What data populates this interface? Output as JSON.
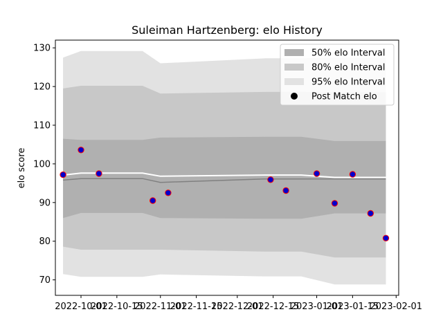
{
  "chart_data": {
    "type": "line",
    "title": "Suleiman  Hartzenberg: elo History",
    "xlabel": "",
    "ylabel": "elo score",
    "ylim": [
      66,
      132
    ],
    "xlim": [
      "2022-09-21",
      "2023-02-02"
    ],
    "x_ticks": [
      "2022-10-01",
      "2022-10-15",
      "2022-11-01",
      "2022-11-15",
      "2022-12-01",
      "2022-12-15",
      "2023-01-01",
      "2023-01-15",
      "2023-02-01"
    ],
    "y_ticks": [
      70,
      80,
      90,
      100,
      110,
      120,
      130
    ],
    "dates": [
      "2022-09-24",
      "2022-10-01",
      "2022-10-08",
      "2022-10-25",
      "2022-11-01",
      "2022-12-12",
      "2022-12-18",
      "2022-12-26",
      "2023-01-08",
      "2023-01-15",
      "2023-01-22",
      "2023-01-28"
    ],
    "mean_line": [
      97.1,
      97.6,
      97.6,
      97.6,
      96.8,
      97.1,
      97.1,
      97.1,
      96.5,
      96.5,
      96.5,
      96.5
    ],
    "median_line": [
      95.8,
      96.2,
      96.2,
      96.2,
      95.2,
      96.1,
      96.1,
      96.1,
      96.1,
      96.1,
      96.1,
      96.1
    ],
    "intervals": [
      {
        "name": "50% elo Interval",
        "color": "#b0b0b0",
        "lower": [
          86,
          87.3,
          87.3,
          87.3,
          86,
          85.8,
          85.8,
          85.8,
          87.2,
          87.2,
          87.2,
          87.2
        ],
        "upper": [
          106.5,
          106.2,
          106.2,
          106.2,
          106.8,
          107,
          107,
          107,
          105.9,
          105.9,
          105.9,
          105.9
        ]
      },
      {
        "name": "80% elo Interval",
        "color": "#c8c8c8",
        "lower": [
          78.6,
          77.8,
          77.8,
          77.8,
          77.8,
          77.3,
          77.3,
          77.3,
          75.8,
          75.8,
          75.8,
          75.8
        ],
        "upper": [
          119.5,
          120.2,
          120.2,
          120.2,
          118.2,
          118.6,
          118.6,
          118.6,
          118.5,
          118.5,
          118.5,
          118.5
        ]
      },
      {
        "name": "95% elo Interval",
        "color": "#e2e2e2",
        "lower": [
          71.5,
          70.8,
          70.8,
          70.8,
          71.4,
          70.9,
          70.9,
          70.9,
          68.8,
          68.8,
          68.8,
          68.8
        ],
        "upper": [
          127.5,
          129.2,
          129.2,
          129.2,
          126,
          127.3,
          127.3,
          127.3,
          127.5,
          127.5,
          127.5,
          127.5
        ]
      }
    ],
    "series": [
      {
        "name": "Post Match elo",
        "x": [
          "2022-09-24",
          "2022-10-01",
          "2022-10-08",
          "2022-10-29",
          "2022-11-04",
          "2022-12-14",
          "2022-12-20",
          "2023-01-01",
          "2023-01-08",
          "2023-01-15",
          "2023-01-22",
          "2023-01-28"
        ],
        "values": [
          97.2,
          103.6,
          97.5,
          90.5,
          92.5,
          95.9,
          93.1,
          97.5,
          89.8,
          97.3,
          87.2,
          80.8
        ]
      }
    ],
    "legend_position": "top-right",
    "grid": false,
    "colors": {
      "marker_fill": "#0000cc",
      "marker_edge": "#ff0000",
      "mean_line": "#ffffff",
      "median_line": "#808080"
    }
  }
}
